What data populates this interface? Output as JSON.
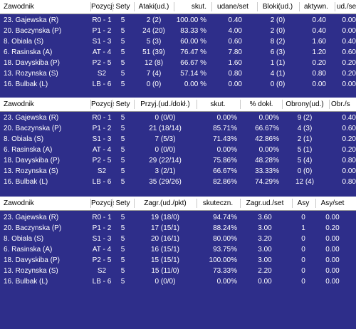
{
  "colors": {
    "background": "#2e2e8a",
    "header_bg": "#ffffff",
    "row_text": "#ffffff"
  },
  "tables": [
    {
      "headers": [
        "Zawodnik",
        "Pozycja",
        "Sety",
        "Ataki(ud.)",
        "skut.",
        "udane/set",
        "Bloki(ud.)",
        "aktywn.",
        "ud./se"
      ],
      "rows": [
        [
          "23. Gajewska (R)",
          "R0 - 1",
          "5",
          "2 (2)",
          "100.00 %",
          "0.40",
          "2 (0)",
          "0.40",
          "0.00"
        ],
        [
          "20. Baczynska (P)",
          "P1 - 2",
          "5",
          "24 (20)",
          "83.33 %",
          "4.00",
          "2 (0)",
          "0.40",
          "0.00"
        ],
        [
          "8. Obiala (S)",
          "S1 - 3",
          "5",
          "5 (3)",
          "60.00 %",
          "0.60",
          "8 (2)",
          "1.60",
          "0.40"
        ],
        [
          "6. Rasinska (A)",
          "AT - 4",
          "5",
          "51 (39)",
          "76.47 %",
          "7.80",
          "6 (3)",
          "1.20",
          "0.60"
        ],
        [
          "18. Davyskiba (P)",
          "P2 - 5",
          "5",
          "12 (8)",
          "66.67 %",
          "1.60",
          "1 (1)",
          "0.20",
          "0.20"
        ],
        [
          "13. Rozynska (S)",
          "S2",
          "5",
          "7 (4)",
          "57.14 %",
          "0.80",
          "4 (1)",
          "0.80",
          "0.20"
        ],
        [
          "16. Bulbak (L)",
          "LB - 6",
          "5",
          "0 (0)",
          "0.00 %",
          "0.00",
          "0 (0)",
          "0.00",
          "0.00"
        ]
      ]
    },
    {
      "headers": [
        "Zawodnik",
        "Pozycja",
        "Sety",
        "Przyj.(ud./dokł.)",
        "skut.",
        "% dokł.",
        "Obrony(ud.)",
        "Obr./s"
      ],
      "rows": [
        [
          "23. Gajewska (R)",
          "R0 - 1",
          "5",
          "0 (0/0)",
          "0.00%",
          "0.00%",
          "9 (2)",
          "0.40"
        ],
        [
          "20. Baczynska (P)",
          "P1 - 2",
          "5",
          "21 (18/14)",
          "85.71%",
          "66.67%",
          "4 (3)",
          "0.60"
        ],
        [
          "8. Obiala (S)",
          "S1 - 3",
          "5",
          "7 (5/3)",
          "71.43%",
          "42.86%",
          "2 (1)",
          "0.20"
        ],
        [
          "6. Rasinska (A)",
          "AT - 4",
          "5",
          "0 (0/0)",
          "0.00%",
          "0.00%",
          "5 (1)",
          "0.20"
        ],
        [
          "18. Davyskiba (P)",
          "P2 - 5",
          "5",
          "29 (22/14)",
          "75.86%",
          "48.28%",
          "5 (4)",
          "0.80"
        ],
        [
          "13. Rozynska (S)",
          "S2",
          "5",
          "3 (2/1)",
          "66.67%",
          "33.33%",
          "0 (0)",
          "0.00"
        ],
        [
          "16. Bulbak (L)",
          "LB - 6",
          "5",
          "35 (29/26)",
          "82.86%",
          "74.29%",
          "12 (4)",
          "0.80"
        ]
      ]
    },
    {
      "headers": [
        "Zawodnik",
        "Pozycja",
        "Sety",
        "Zagr.(ud./pkt)",
        "skuteczn.",
        "Zagr.ud./set",
        "Asy",
        "Asy/set"
      ],
      "rows": [
        [
          "23. Gajewska (R)",
          "R0 - 1",
          "5",
          "19 (18/0)",
          "94.74%",
          "3.60",
          "0",
          "0.00"
        ],
        [
          "20. Baczynska (P)",
          "P1 - 2",
          "5",
          "17 (15/1)",
          "88.24%",
          "3.00",
          "1",
          "0.20"
        ],
        [
          "8. Obiala (S)",
          "S1 - 3",
          "5",
          "20 (16/1)",
          "80.00%",
          "3.20",
          "0",
          "0.00"
        ],
        [
          "6. Rasinska (A)",
          "AT - 4",
          "5",
          "16 (15/1)",
          "93.75%",
          "3.00",
          "0",
          "0.00"
        ],
        [
          "18. Davyskiba (P)",
          "P2 - 5",
          "5",
          "15 (15/1)",
          "100.00%",
          "3.00",
          "0",
          "0.00"
        ],
        [
          "13. Rozynska (S)",
          "S2",
          "5",
          "15 (11/0)",
          "73.33%",
          "2.20",
          "0",
          "0.00"
        ],
        [
          "16. Bulbak (L)",
          "LB - 6",
          "5",
          "0 (0/0)",
          "0.00%",
          "0.00",
          "0",
          "0.00"
        ]
      ]
    }
  ]
}
